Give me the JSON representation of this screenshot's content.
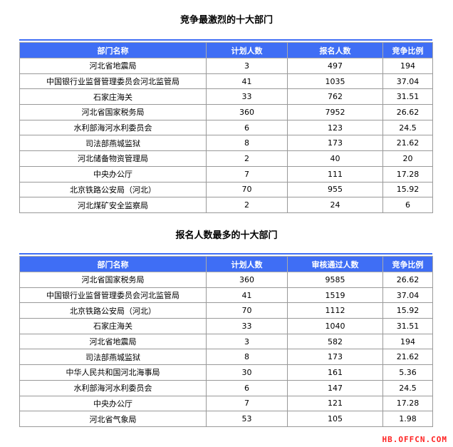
{
  "table1": {
    "title": "竞争最激烈的十大部门",
    "headers": [
      "部门名称",
      "计划人数",
      "报名人数",
      "竞争比例"
    ],
    "rows": [
      [
        "河北省地震局",
        "3",
        "497",
        "194"
      ],
      [
        "中国银行业监督管理委员会河北监管局",
        "41",
        "1035",
        "37.04"
      ],
      [
        "石家庄海关",
        "33",
        "762",
        "31.51"
      ],
      [
        "河北省国家税务局",
        "360",
        "7952",
        "26.62"
      ],
      [
        "水利部海河水利委员会",
        "6",
        "123",
        "24.5"
      ],
      [
        "司法部燕城监狱",
        "8",
        "173",
        "21.62"
      ],
      [
        "河北储备物资管理局",
        "2",
        "40",
        "20"
      ],
      [
        "中央办公厅",
        "7",
        "111",
        "17.28"
      ],
      [
        "北京铁路公安局（河北）",
        "70",
        "955",
        "15.92"
      ],
      [
        "河北煤矿安全监察局",
        "2",
        "24",
        "6"
      ]
    ]
  },
  "table2": {
    "title": "报名人数最多的十大部门",
    "headers": [
      "部门名称",
      "计划人数",
      "审核通过人数",
      "竞争比例"
    ],
    "rows": [
      [
        "河北省国家税务局",
        "360",
        "9585",
        "26.62"
      ],
      [
        "中国银行业监督管理委员会河北监管局",
        "41",
        "1519",
        "37.04"
      ],
      [
        "北京铁路公安局（河北）",
        "70",
        "1112",
        "15.92"
      ],
      [
        "石家庄海关",
        "33",
        "1040",
        "31.51"
      ],
      [
        "河北省地震局",
        "3",
        "582",
        "194"
      ],
      [
        "司法部燕城监狱",
        "8",
        "173",
        "21.62"
      ],
      [
        "中华人民共和国河北海事局",
        "30",
        "161",
        "5.36"
      ],
      [
        "水利部海河水利委员会",
        "6",
        "147",
        "24.5"
      ],
      [
        "中央办公厅",
        "7",
        "121",
        "17.28"
      ],
      [
        "河北省气象局",
        "53",
        "105",
        "1.98"
      ]
    ]
  },
  "watermark": "HB.OFFCN.COM",
  "colors": {
    "header": "#3f6ef5",
    "watermark": "#ff2222"
  }
}
